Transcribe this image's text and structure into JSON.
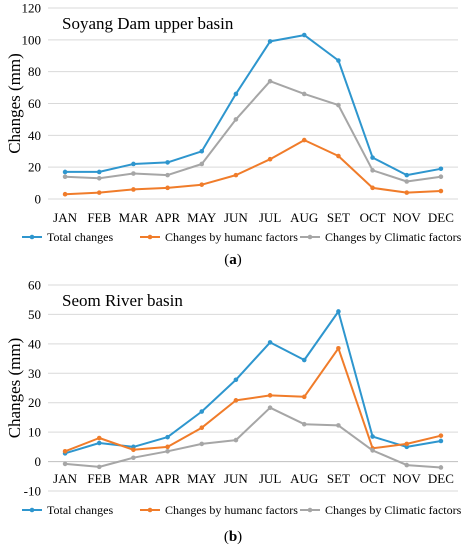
{
  "chart_data": [
    {
      "type": "line",
      "panel_label": "(a)",
      "title": "Soyang Dam upper basin",
      "ylabel": "Changes (mm)",
      "xlabel": "",
      "categories": [
        "JAN",
        "FEB",
        "MAR",
        "APR",
        "MAY",
        "JUN",
        "JUL",
        "AUG",
        "SET",
        "OCT",
        "NOV",
        "DEC"
      ],
      "ylim": [
        0,
        120
      ],
      "yticks": [
        0,
        20,
        40,
        60,
        80,
        100,
        120
      ],
      "grid": true,
      "legend_position": "bottom",
      "series": [
        {
          "name": "Total changes",
          "color": "#2E96CE",
          "values": [
            17,
            17,
            22,
            23,
            30,
            66,
            99,
            103,
            87,
            26,
            15,
            19
          ]
        },
        {
          "name": "Changes by humanc factors",
          "color": "#F07C2A",
          "values": [
            3,
            4,
            6,
            7,
            9,
            15,
            25,
            37,
            27,
            7,
            4,
            5
          ]
        },
        {
          "name": "Changes by Climatic factors",
          "color": "#A6A6A6",
          "values": [
            14,
            13,
            16,
            15,
            22,
            50,
            74,
            66,
            59,
            18,
            11,
            14
          ]
        }
      ]
    },
    {
      "type": "line",
      "panel_label": "(b)",
      "title": "Seom River basin",
      "ylabel": "Changes (mm)",
      "xlabel": "",
      "categories": [
        "JAN",
        "FEB",
        "MAR",
        "APR",
        "MAY",
        "JUN",
        "JUL",
        "AUG",
        "SET",
        "OCT",
        "NOV",
        "DEC"
      ],
      "ylim": [
        -10,
        60
      ],
      "yticks": [
        -10,
        0,
        10,
        20,
        30,
        40,
        50,
        60
      ],
      "grid": true,
      "legend_position": "bottom",
      "series": [
        {
          "name": "Total changes",
          "color": "#2E96CE",
          "values": [
            2.8,
            6.3,
            5,
            8.3,
            17,
            27.8,
            40.5,
            34.5,
            51,
            8.5,
            5,
            7
          ]
        },
        {
          "name": "Changes by humanc factors",
          "color": "#F07C2A",
          "values": [
            3.5,
            8,
            4,
            5,
            11.5,
            20.8,
            22.5,
            22,
            38.5,
            4.5,
            6,
            8.8
          ]
        },
        {
          "name": "Changes by Climatic factors",
          "color": "#A6A6A6",
          "values": [
            -0.8,
            -1.8,
            1.3,
            3.5,
            6,
            7.3,
            18.3,
            12.7,
            12.3,
            3.8,
            -1.2,
            -2
          ]
        }
      ]
    }
  ]
}
